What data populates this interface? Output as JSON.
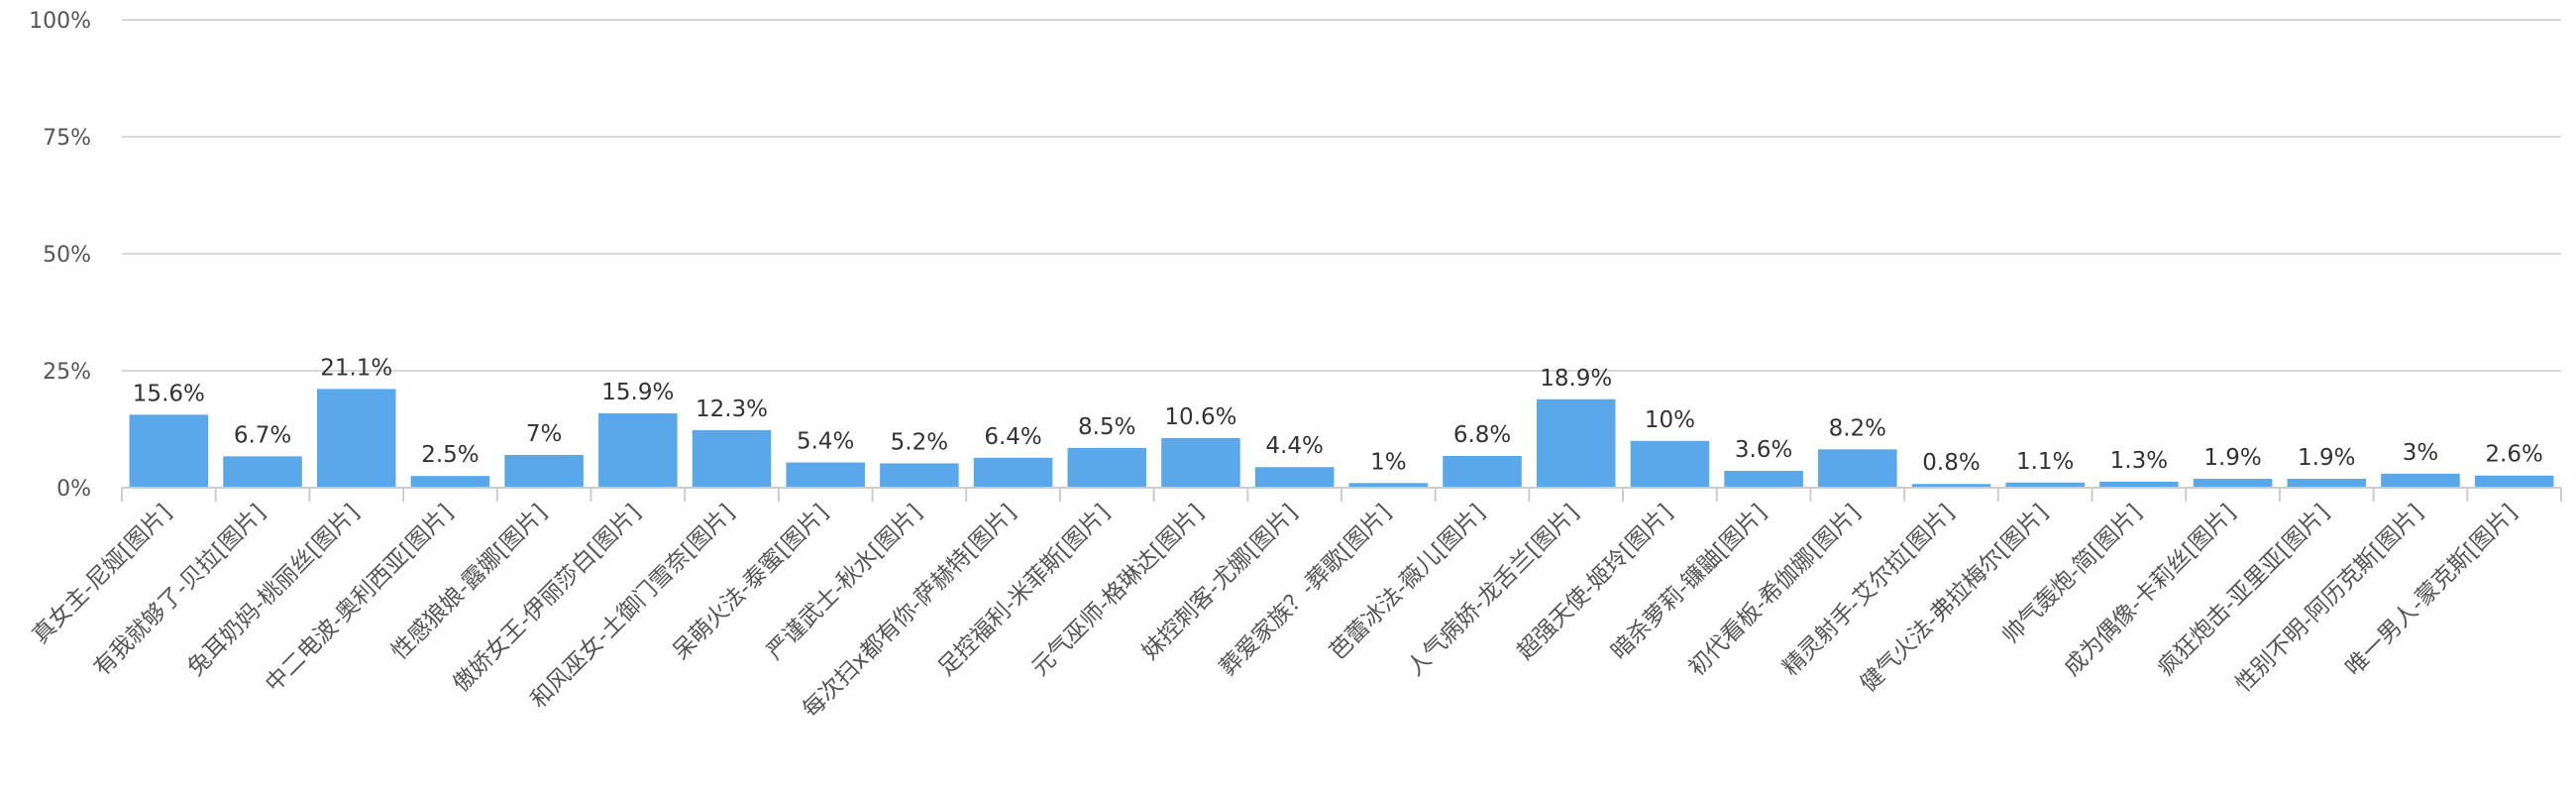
{
  "chart_data": {
    "type": "bar",
    "title": "",
    "xlabel": "",
    "ylabel": "",
    "ylim": [
      0,
      100
    ],
    "y_ticks": [
      "0%",
      "25%",
      "50%",
      "75%",
      "100%"
    ],
    "y_tick_values": [
      0,
      25,
      50,
      75,
      100
    ],
    "grid": true,
    "legend": "none",
    "bar_color": "#5aa8ea",
    "categories": [
      "真女主-尼娅[图片]",
      "有我就够了-贝拉[图片]",
      "兔耳奶妈-桃丽丝[图片]",
      "中二电波-奥利西亚[图片]",
      "性感狼娘-露娜[图片]",
      "傲娇女王-伊丽莎白[图片]",
      "和风巫女-土御门雪奈[图片]",
      "呆萌火法-泰蜜[图片]",
      "严谨武士-秋水[图片]",
      "每次扫x都有你-萨赫特[图片]",
      "足控福利-米菲斯[图片]",
      "元气巫师-格琳达[图片]",
      "妹控刺客-尤娜[图片]",
      "葬爱家族？-葬歌[图片]",
      "芭蕾冰法-薇儿[图片]",
      "人气病娇-龙舌兰[图片]",
      "超强天使-姬玲[图片]",
      "暗杀萝莉-镰鼬[图片]",
      "初代看板-希伽娜[图片]",
      "精灵射手-艾尔拉[图片]",
      "健气火法-弗拉梅尔[图片]",
      "帅气轰炮-简[图片]",
      "成为偶像-卡莉丝[图片]",
      "疯狂炮击-亚里亚[图片]",
      "性别不明-阿历克斯[图片]",
      "唯一男人-蒙克斯[图片]"
    ],
    "values": [
      15.6,
      6.7,
      21.1,
      2.5,
      7,
      15.9,
      12.3,
      5.4,
      5.2,
      6.4,
      8.5,
      10.6,
      4.4,
      1,
      6.8,
      18.9,
      10,
      3.6,
      8.2,
      0.8,
      1.1,
      1.3,
      1.9,
      1.9,
      3,
      2.6
    ],
    "data_labels": [
      "15.6%",
      "6.7%",
      "21.1%",
      "2.5%",
      "7%",
      "15.9%",
      "12.3%",
      "5.4%",
      "5.2%",
      "6.4%",
      "8.5%",
      "10.6%",
      "4.4%",
      "1%",
      "6.8%",
      "18.9%",
      "10%",
      "3.6%",
      "8.2%",
      "0.8%",
      "1.1%",
      "1.3%",
      "1.9%",
      "1.9%",
      "3%",
      "2.6%"
    ]
  }
}
